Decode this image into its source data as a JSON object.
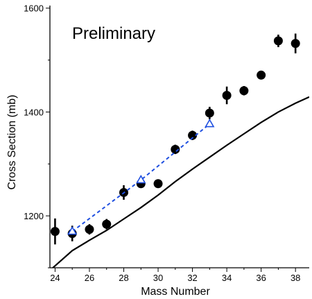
{
  "chart_data": {
    "type": "scatter",
    "title": "",
    "annotation": "Preliminary",
    "xlabel": "Mass Number",
    "ylabel": "Cross Section (mb)",
    "xlim": [
      23.7,
      38.8
    ],
    "ylim": [
      1100,
      1605
    ],
    "xticks": [
      24,
      26,
      28,
      30,
      32,
      34,
      36,
      38
    ],
    "yticks": [
      1200,
      1400,
      1600
    ],
    "grid": false,
    "legend": "none",
    "series": [
      {
        "kind": "scatter-errorbar",
        "color": "#000000",
        "marker": "filled-circle",
        "x": [
          24,
          25,
          26,
          27,
          28,
          29,
          30,
          31,
          32,
          33,
          34,
          35,
          36,
          37,
          38
        ],
        "y": [
          1170,
          1166,
          1174,
          1184,
          1245,
          1262,
          1262,
          1328,
          1355,
          1398,
          1432,
          1441,
          1471,
          1537,
          1532
        ],
        "yerr": [
          25,
          15,
          10,
          10,
          14,
          8,
          6,
          9,
          9,
          12,
          17,
          9,
          7,
          12,
          19
        ]
      },
      {
        "kind": "dashed-line-markers",
        "color": "#1f4fe0",
        "marker": "open-triangle",
        "x": [
          25,
          29,
          33
        ],
        "y": [
          1170,
          1269,
          1377
        ]
      },
      {
        "kind": "line",
        "color": "#000000",
        "x": [
          23.7,
          25,
          26,
          27,
          28,
          29,
          30,
          31,
          32,
          33,
          34,
          35,
          36,
          37,
          38,
          38.8
        ],
        "y": [
          1095,
          1133,
          1153,
          1172,
          1194,
          1216,
          1240,
          1266,
          1290,
          1313,
          1336,
          1358,
          1380,
          1400,
          1417,
          1429
        ]
      }
    ]
  }
}
